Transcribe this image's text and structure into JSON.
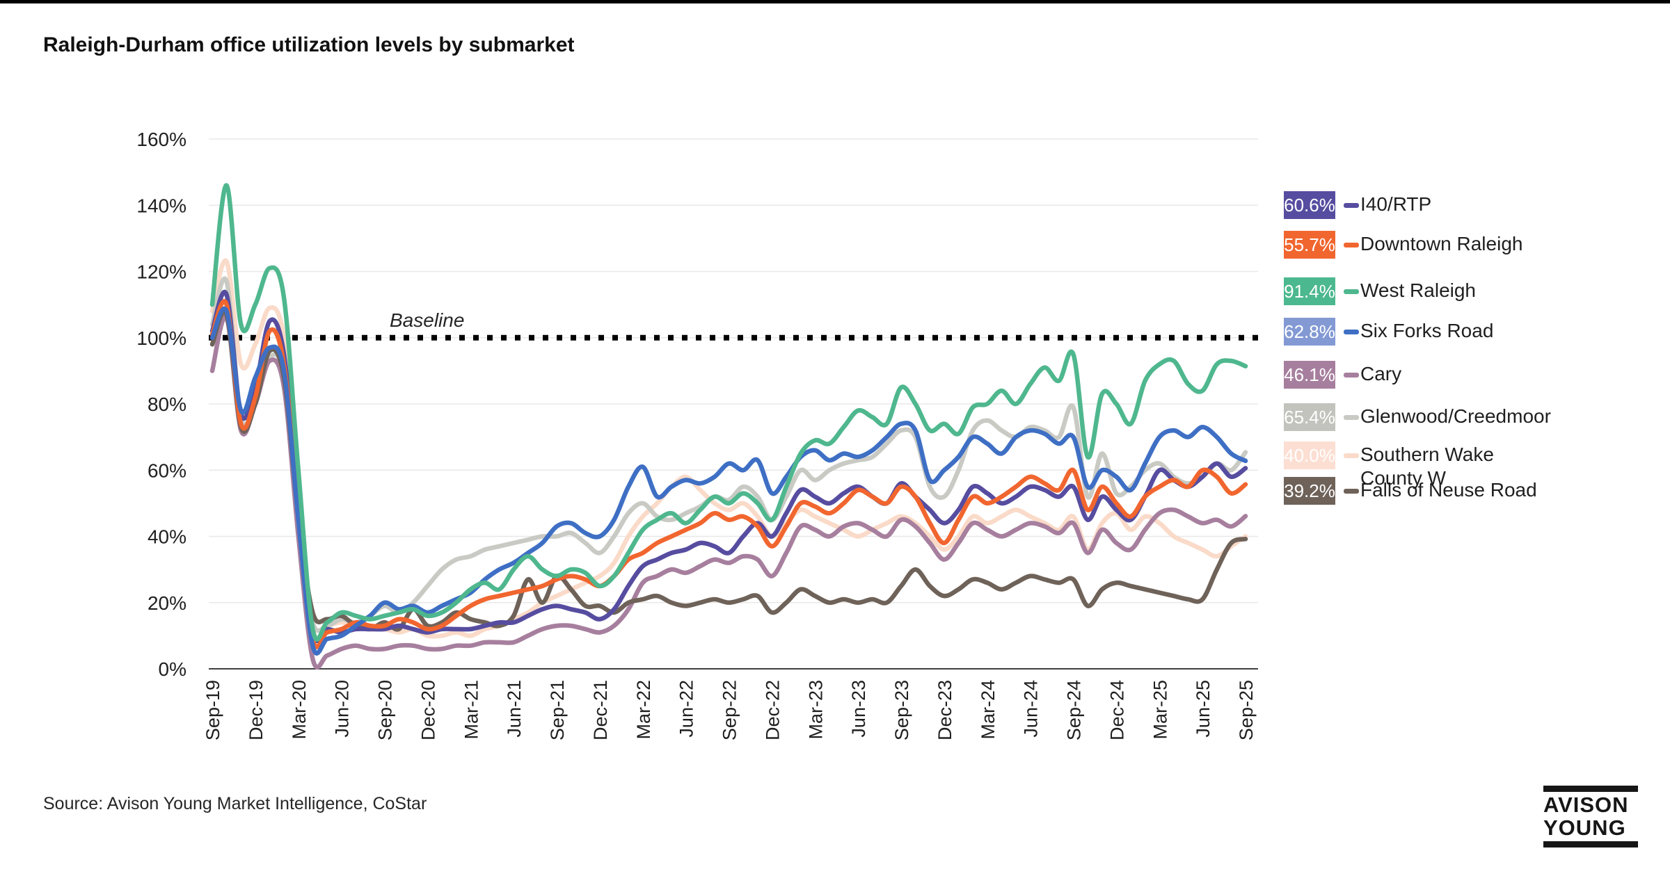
{
  "header": {
    "title": "Raleigh-Durham office utilization levels by submarket"
  },
  "footer": {
    "source": "Source: Avison Young Market Intelligence, CoStar"
  },
  "logo": {
    "line1": "AVISON",
    "line2": "YOUNG"
  },
  "chart_data": {
    "type": "line",
    "title": "Raleigh-Durham office utilization levels by submarket",
    "x_interval": "monthly",
    "x_start": "Sep-19",
    "x_end": "Sep-25",
    "x_tick_labels": [
      "Sep-19",
      "Dec-19",
      "Mar-20",
      "Jun-20",
      "Sep-20",
      "Dec-20",
      "Mar-21",
      "Jun-21",
      "Sep-21",
      "Dec-21",
      "Mar-22",
      "Jun-22",
      "Sep-22",
      "Dec-22",
      "Mar-23",
      "Jun-23",
      "Sep-23",
      "Dec-23",
      "Mar-24",
      "Jun-24",
      "Sep-24",
      "Dec-24",
      "Mar-25",
      "Jun-25",
      "Sep-25"
    ],
    "y_tick_labels": [
      "0%",
      "20%",
      "40%",
      "60%",
      "80%",
      "100%",
      "120%",
      "140%",
      "160%"
    ],
    "ylim": [
      0,
      160
    ],
    "grid": true,
    "legend_position": "right",
    "baseline": {
      "value": 100,
      "label": "Baseline"
    },
    "series": [
      {
        "name": "I40/RTP",
        "current_label": "60.6%",
        "badge_color": "#564DA0",
        "line_color": "#564DA0",
        "values": [
          102,
          113,
          77,
          85,
          105,
          95,
          50,
          11,
          12,
          11,
          12,
          12,
          12,
          13,
          12,
          11,
          12,
          12,
          12,
          13,
          14,
          14,
          16,
          18,
          19,
          18,
          17,
          15,
          18,
          25,
          31,
          33,
          35,
          36,
          38,
          37,
          35,
          40,
          44,
          40,
          47,
          54,
          52,
          50,
          53,
          55,
          52,
          50,
          56,
          52,
          48,
          44,
          48,
          55,
          53,
          50,
          52,
          55,
          54,
          52,
          55,
          45,
          52,
          48,
          45,
          52,
          60,
          57,
          55,
          58,
          62,
          58,
          60.6
        ]
      },
      {
        "name": "Downtown Raleigh",
        "current_label": "55.7%",
        "badge_color": "#F1662F",
        "line_color": "#F1662F",
        "values": [
          101,
          110,
          74,
          82,
          102,
          92,
          48,
          9,
          11,
          12,
          14,
          13,
          13,
          15,
          14,
          12,
          13,
          16,
          19,
          21,
          22,
          23,
          24,
          25,
          27,
          28,
          27,
          25,
          28,
          33,
          35,
          38,
          40,
          42,
          44,
          47,
          45,
          46,
          43,
          37,
          43,
          50,
          49,
          47,
          50,
          54,
          52,
          50,
          55,
          52,
          44,
          38,
          45,
          52,
          50,
          52,
          55,
          58,
          56,
          54,
          60,
          48,
          55,
          50,
          46,
          52,
          55,
          57,
          55,
          60,
          58,
          53,
          55.7
        ]
      },
      {
        "name": "West Raleigh",
        "current_label": "91.4%",
        "badge_color": "#4CB88F",
        "line_color": "#4FB78E",
        "values": [
          110,
          146,
          104,
          110,
          121,
          112,
          60,
          12,
          14,
          17,
          16,
          15,
          16,
          17,
          18,
          16,
          17,
          20,
          24,
          26,
          24,
          30,
          34,
          30,
          28,
          30,
          29,
          25,
          28,
          35,
          42,
          45,
          47,
          44,
          48,
          52,
          50,
          53,
          50,
          45,
          55,
          65,
          69,
          68,
          73,
          78,
          76,
          74,
          85,
          80,
          72,
          74,
          71,
          79,
          80,
          84,
          80,
          86,
          91,
          87,
          95,
          64,
          83,
          80,
          74,
          87,
          92,
          93,
          86,
          84,
          92,
          93,
          91.4
        ]
      },
      {
        "name": "Six Forks Road",
        "current_label": "62.8%",
        "badge_color": "#8399D4",
        "line_color": "#3E6FC4",
        "values": [
          100,
          108,
          78,
          88,
          97,
          90,
          45,
          7,
          9,
          10,
          13,
          16,
          20,
          18,
          19,
          17,
          19,
          21,
          23,
          27,
          30,
          32,
          35,
          38,
          43,
          44,
          41,
          40,
          45,
          55,
          61,
          52,
          55,
          57,
          56,
          58,
          62,
          60,
          63,
          53,
          58,
          64,
          66,
          63,
          65,
          64,
          66,
          70,
          74,
          72,
          57,
          60,
          64,
          70,
          68,
          65,
          70,
          72,
          71,
          68,
          70,
          55,
          60,
          58,
          54,
          62,
          70,
          72,
          70,
          73,
          70,
          65,
          62.8
        ]
      },
      {
        "name": "Cary",
        "current_label": "46.1%",
        "badge_color": "#A77F9E",
        "line_color": "#A77F9E",
        "values": [
          90,
          106,
          72,
          80,
          93,
          85,
          40,
          3,
          4,
          6,
          7,
          6,
          6,
          7,
          7,
          6,
          6,
          7,
          7,
          8,
          8,
          8,
          10,
          12,
          13,
          13,
          12,
          11,
          13,
          18,
          26,
          28,
          30,
          29,
          31,
          33,
          32,
          34,
          33,
          28,
          35,
          43,
          42,
          40,
          43,
          44,
          42,
          40,
          45,
          43,
          38,
          33,
          38,
          44,
          42,
          40,
          42,
          44,
          43,
          41,
          44,
          35,
          42,
          38,
          36,
          42,
          47,
          48,
          46,
          44,
          45,
          43,
          46.1
        ]
      },
      {
        "name": "Glenwood/Creedmoor",
        "current_label": "65.4%",
        "badge_color": "#C2C3BD",
        "line_color": "#C9CAC4",
        "values": [
          104,
          117,
          76,
          80,
          94,
          88,
          42,
          14,
          13,
          15,
          14,
          16,
          19,
          17,
          20,
          25,
          30,
          33,
          34,
          36,
          37,
          38,
          39,
          40,
          40,
          41,
          38,
          35,
          40,
          47,
          50,
          46,
          45,
          47,
          49,
          52,
          51,
          55,
          52,
          45,
          52,
          60,
          57,
          60,
          62,
          63,
          64,
          68,
          72,
          70,
          55,
          52,
          60,
          72,
          75,
          72,
          70,
          73,
          72,
          70,
          79,
          52,
          65,
          53,
          55,
          60,
          62,
          58,
          56,
          58,
          62,
          60,
          65.4
        ]
      },
      {
        "name": "Southern Wake County W",
        "label_lines": [
          "Southern Wake",
          "County W"
        ],
        "current_label": "40.0%",
        "badge_color": "#FCDFD2",
        "line_color": "#FADAC8",
        "values": [
          108,
          123,
          92,
          98,
          109,
          100,
          52,
          12,
          13,
          14,
          13,
          12,
          12,
          11,
          12,
          10,
          10,
          11,
          10,
          12,
          13,
          15,
          17,
          20,
          22,
          24,
          26,
          28,
          32,
          40,
          46,
          50,
          55,
          58,
          54,
          50,
          48,
          50,
          46,
          40,
          44,
          48,
          46,
          44,
          42,
          40,
          42,
          44,
          46,
          44,
          40,
          36,
          40,
          46,
          44,
          46,
          48,
          46,
          44,
          42,
          46,
          36,
          44,
          47,
          42,
          46,
          44,
          40,
          38,
          36,
          34,
          37,
          40.0
        ]
      },
      {
        "name": "Falls of Neuse Road",
        "current_label": "39.2%",
        "badge_color": "#6E6259",
        "line_color": "#6E6259",
        "values": [
          98,
          107,
          73,
          80,
          96,
          88,
          46,
          17,
          15,
          16,
          13,
          12,
          14,
          12,
          18,
          13,
          14,
          17,
          15,
          14,
          13,
          16,
          27,
          20,
          28,
          24,
          19,
          19,
          17,
          20,
          21,
          22,
          20,
          19,
          20,
          21,
          20,
          21,
          22,
          17,
          20,
          24,
          22,
          20,
          21,
          20,
          21,
          20,
          25,
          30,
          25,
          22,
          24,
          27,
          26,
          24,
          26,
          28,
          27,
          26,
          27,
          19,
          24,
          26,
          25,
          24,
          23,
          22,
          21,
          21,
          30,
          38,
          39.2
        ]
      }
    ]
  }
}
